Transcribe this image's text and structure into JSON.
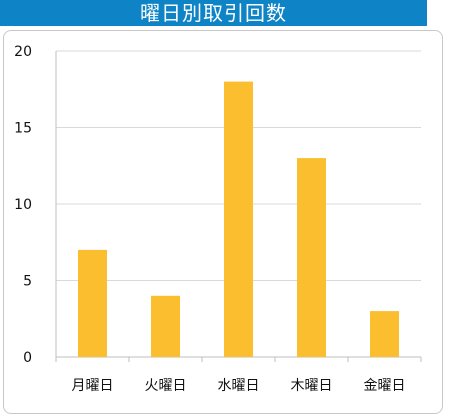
{
  "chart_data": {
    "type": "bar",
    "title": "曜日別取引回数",
    "categories": [
      "月曜日",
      "火曜日",
      "水曜日",
      "木曜日",
      "金曜日"
    ],
    "values": [
      7,
      4,
      18,
      13,
      3
    ],
    "ylim": [
      0,
      20
    ],
    "yticks": [
      0,
      5,
      10,
      15,
      20
    ],
    "grid": true,
    "bar_color": "#fbbe2f",
    "title_bg_color": "#0e84c6"
  }
}
